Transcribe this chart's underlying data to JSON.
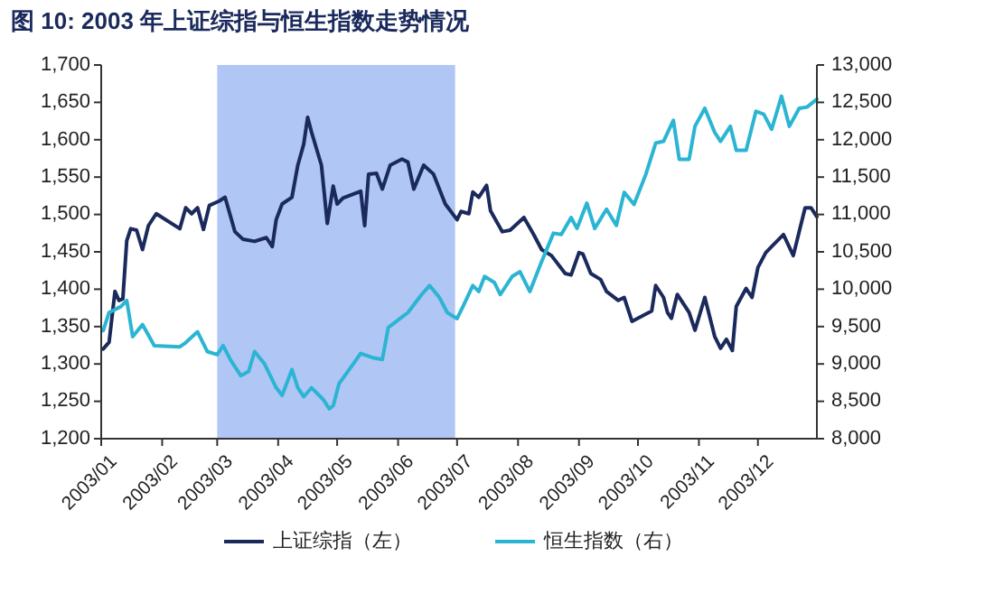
{
  "chart_data": {
    "type": "line",
    "title": "图 10:  2003 年上证综指与恒生指数走势情况",
    "xlim": [
      "2003-01-01",
      "2003-12-31"
    ],
    "xticks": [
      {
        "value": "2003-01-01",
        "label": "2003/01"
      },
      {
        "value": "2003-02-01",
        "label": "2003/02"
      },
      {
        "value": "2003-03-01",
        "label": "2003/03"
      },
      {
        "value": "2003-04-01",
        "label": "2003/04"
      },
      {
        "value": "2003-05-01",
        "label": "2003/05"
      },
      {
        "value": "2003-06-01",
        "label": "2003/06"
      },
      {
        "value": "2003-07-01",
        "label": "2003/07"
      },
      {
        "value": "2003-08-01",
        "label": "2003/08"
      },
      {
        "value": "2003-09-01",
        "label": "2003/09"
      },
      {
        "value": "2003-10-01",
        "label": "2003/10"
      },
      {
        "value": "2003-11-01",
        "label": "2003/11"
      },
      {
        "value": "2003-12-01",
        "label": "2003/12"
      }
    ],
    "ylim": [
      1200,
      1700
    ],
    "yticks": [
      {
        "value": 1200,
        "label": "1,200"
      },
      {
        "value": 1250,
        "label": "1,250"
      },
      {
        "value": 1300,
        "label": "1,300"
      },
      {
        "value": 1350,
        "label": "1,350"
      },
      {
        "value": 1400,
        "label": "1,400"
      },
      {
        "value": 1450,
        "label": "1,450"
      },
      {
        "value": 1500,
        "label": "1,500"
      },
      {
        "value": 1550,
        "label": "1,550"
      },
      {
        "value": 1600,
        "label": "1,600"
      },
      {
        "value": 1650,
        "label": "1,650"
      },
      {
        "value": 1700,
        "label": "1,700"
      }
    ],
    "y2lim": [
      8000,
      13000
    ],
    "y2ticks": [
      {
        "value": 8000,
        "label": "8,000"
      },
      {
        "value": 8500,
        "label": "8,500"
      },
      {
        "value": 9000,
        "label": "9,000"
      },
      {
        "value": 9500,
        "label": "9,500"
      },
      {
        "value": 10000,
        "label": "10,000"
      },
      {
        "value": 10500,
        "label": "10,500"
      },
      {
        "value": 11000,
        "label": "11,000"
      },
      {
        "value": 11500,
        "label": "11,500"
      },
      {
        "value": 12000,
        "label": "12,000"
      },
      {
        "value": 12500,
        "label": "12,500"
      },
      {
        "value": 13000,
        "label": "13,000"
      }
    ],
    "bands": [
      {
        "axis": "x",
        "from": "2003-03-01",
        "to": "2003-06-30",
        "color": "#b0c6f5"
      }
    ],
    "legend": "bottom",
    "grid": false,
    "series": [
      {
        "name": "上证综指（左）",
        "color": "#1b2a5c",
        "x": [
          "2003-01-02",
          "2003-01-05",
          "2003-01-08",
          "2003-01-10",
          "2003-01-12",
          "2003-01-14",
          "2003-01-16",
          "2003-01-19",
          "2003-01-22",
          "2003-01-25",
          "2003-01-29",
          "2003-02-10",
          "2003-02-13",
          "2003-02-16",
          "2003-02-19",
          "2003-02-22",
          "2003-02-25",
          "2003-03-02",
          "2003-03-05",
          "2003-03-10",
          "2003-03-14",
          "2003-03-20",
          "2003-03-26",
          "2003-03-29",
          "2003-03-31",
          "2003-04-03",
          "2003-04-08",
          "2003-04-11",
          "2003-04-14",
          "2003-04-16",
          "2003-04-18",
          "2003-04-23",
          "2003-04-26",
          "2003-04-29",
          "2003-05-01",
          "2003-05-04",
          "2003-05-13",
          "2003-05-15",
          "2003-05-17",
          "2003-05-21",
          "2003-05-24",
          "2003-05-28",
          "2003-06-03",
          "2003-06-06",
          "2003-06-09",
          "2003-06-14",
          "2003-06-19",
          "2003-06-25",
          "2003-07-01",
          "2003-07-03",
          "2003-07-07",
          "2003-07-09",
          "2003-07-12",
          "2003-07-16",
          "2003-07-18",
          "2003-07-24",
          "2003-07-28",
          "2003-08-04",
          "2003-08-09",
          "2003-08-13",
          "2003-08-18",
          "2003-08-25",
          "2003-08-28",
          "2003-09-01",
          "2003-09-03",
          "2003-09-07",
          "2003-09-12",
          "2003-09-15",
          "2003-09-21",
          "2003-09-24",
          "2003-09-28",
          "2003-10-08",
          "2003-10-10",
          "2003-10-14",
          "2003-10-16",
          "2003-10-18",
          "2003-10-21",
          "2003-10-27",
          "2003-10-30",
          "2003-11-04",
          "2003-11-09",
          "2003-11-12",
          "2003-11-15",
          "2003-11-18",
          "2003-11-20",
          "2003-11-25",
          "2003-11-28",
          "2003-12-01",
          "2003-12-05",
          "2003-12-08",
          "2003-12-14",
          "2003-12-19",
          "2003-12-25",
          "2003-12-28",
          "2003-12-31"
        ],
        "values": [
          1320,
          1329,
          1397,
          1385,
          1387,
          1465,
          1481,
          1479,
          1453,
          1485,
          1501,
          1481,
          1509,
          1501,
          1509,
          1480,
          1512,
          1518,
          1523,
          1477,
          1467,
          1464,
          1469,
          1457,
          1493,
          1514,
          1523,
          1566,
          1594,
          1630,
          1610,
          1566,
          1488,
          1538,
          1514,
          1522,
          1531,
          1485,
          1554,
          1555,
          1534,
          1566,
          1574,
          1570,
          1534,
          1566,
          1554,
          1514,
          1493,
          1504,
          1501,
          1530,
          1523,
          1539,
          1505,
          1477,
          1479,
          1496,
          1473,
          1453,
          1445,
          1421,
          1419,
          1449,
          1447,
          1421,
          1413,
          1397,
          1385,
          1389,
          1357,
          1371,
          1405,
          1389,
          1369,
          1361,
          1393,
          1369,
          1345,
          1389,
          1337,
          1321,
          1333,
          1318,
          1377,
          1401,
          1389,
          1429,
          1449,
          1457,
          1473,
          1445,
          1509,
          1509,
          1497
        ]
      },
      {
        "name": "恒生指数（右）",
        "color": "#2bb5d3",
        "axis": "y2",
        "x": [
          "2003-01-02",
          "2003-01-05",
          "2003-01-11",
          "2003-01-14",
          "2003-01-17",
          "2003-01-22",
          "2003-01-28",
          "2003-02-10",
          "2003-02-13",
          "2003-02-19",
          "2003-02-24",
          "2003-03-01",
          "2003-03-04",
          "2003-03-08",
          "2003-03-13",
          "2003-03-17",
          "2003-03-20",
          "2003-03-25",
          "2003-03-31",
          "2003-04-03",
          "2003-04-08",
          "2003-04-11",
          "2003-04-14",
          "2003-04-18",
          "2003-04-24",
          "2003-04-27",
          "2003-04-29",
          "2003-05-02",
          "2003-05-06",
          "2003-05-13",
          "2003-05-19",
          "2003-05-24",
          "2003-05-27",
          "2003-06-02",
          "2003-06-06",
          "2003-06-13",
          "2003-06-17",
          "2003-06-22",
          "2003-06-26",
          "2003-07-01",
          "2003-07-04",
          "2003-07-09",
          "2003-07-12",
          "2003-07-15",
          "2003-07-20",
          "2003-07-23",
          "2003-07-29",
          "2003-08-02",
          "2003-08-07",
          "2003-08-13",
          "2003-08-19",
          "2003-08-23",
          "2003-08-28",
          "2003-08-31",
          "2003-09-05",
          "2003-09-09",
          "2003-09-15",
          "2003-09-20",
          "2003-09-24",
          "2003-09-29",
          "2003-10-05",
          "2003-10-10",
          "2003-10-14",
          "2003-10-19",
          "2003-10-22",
          "2003-10-27",
          "2003-10-30",
          "2003-11-04",
          "2003-11-09",
          "2003-11-12",
          "2003-11-17",
          "2003-11-20",
          "2003-11-25",
          "2003-11-30",
          "2003-12-04",
          "2003-12-08",
          "2003-12-13",
          "2003-12-17",
          "2003-12-22",
          "2003-12-26",
          "2003-12-31"
        ],
        "values": [
          9446,
          9688,
          9768,
          9848,
          9366,
          9527,
          9245,
          9229,
          9286,
          9430,
          9165,
          9125,
          9245,
          9044,
          8843,
          8900,
          9165,
          9004,
          8682,
          8578,
          8924,
          8682,
          8562,
          8682,
          8522,
          8401,
          8441,
          8739,
          8884,
          9141,
          9085,
          9060,
          9487,
          9607,
          9688,
          9929,
          10049,
          9889,
          9688,
          9607,
          9768,
          10049,
          9969,
          10170,
          10089,
          9929,
          10170,
          10234,
          9969,
          10371,
          10749,
          10733,
          10958,
          10813,
          11151,
          10813,
          11070,
          10853,
          11296,
          11135,
          11537,
          11955,
          11979,
          12260,
          11738,
          11738,
          12180,
          12421,
          12100,
          11979,
          12180,
          11858,
          11858,
          12381,
          12341,
          12140,
          12582,
          12180,
          12421,
          12437,
          12542
        ]
      }
    ]
  }
}
